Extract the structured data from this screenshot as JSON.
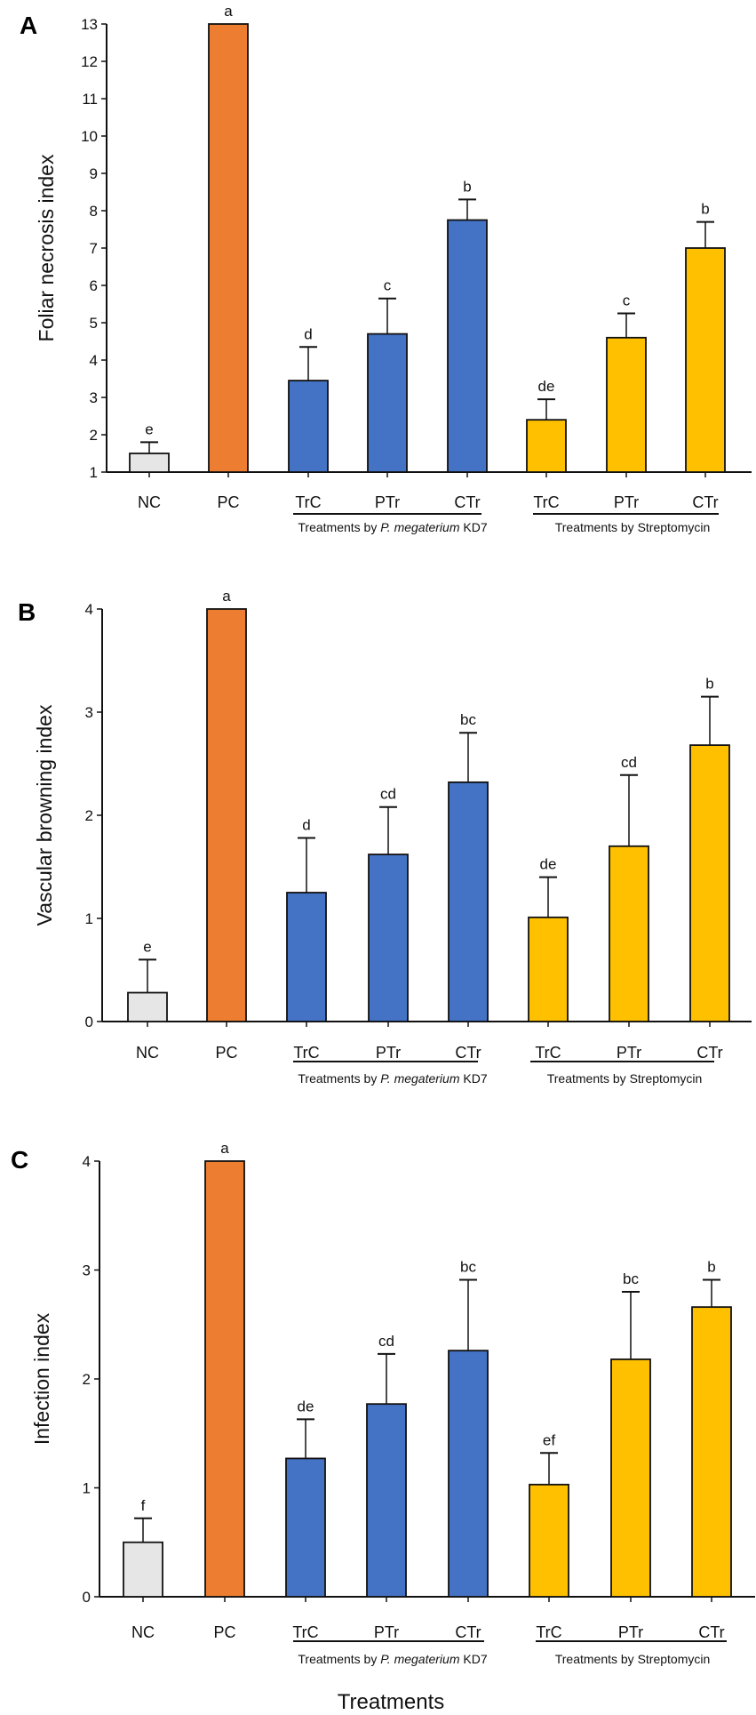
{
  "colors": {
    "NC": "#e6e6e6",
    "PC": "#ed7d31",
    "KD7": "#4472c4",
    "Streptomycin": "#ffc000"
  },
  "chart_data": [
    {
      "type": "bar",
      "panel_label": "A",
      "ylabel": "Foliar necrosis index",
      "ylim": [
        1,
        13
      ],
      "yticks": [
        1,
        2,
        3,
        4,
        5,
        6,
        7,
        8,
        9,
        10,
        11,
        12,
        13
      ],
      "categories": [
        "NC",
        "PC",
        "TrC",
        "PTr",
        "CTr",
        "TrC",
        "PTr",
        "CTr"
      ],
      "groups": [
        "none",
        "none",
        "KD7",
        "KD7",
        "KD7",
        "Streptomycin",
        "Streptomycin",
        "Streptomycin"
      ],
      "values": [
        1.5,
        13,
        3.45,
        4.7,
        7.75,
        2.4,
        4.6,
        7.0
      ],
      "error_upper": [
        1.8,
        13,
        4.35,
        5.65,
        8.3,
        2.95,
        5.25,
        7.7
      ],
      "letters": [
        "e",
        "a",
        "d",
        "c",
        "b",
        "de",
        "c",
        "b"
      ],
      "group_labels": {
        "kd7_prefix": "Treatments by ",
        "kd7_italic": "P. megaterium",
        "kd7_suffix": " KD7",
        "strep": "Treatments by Streptomycin"
      }
    },
    {
      "type": "bar",
      "panel_label": "B",
      "ylabel": "Vascular browning index",
      "ylim": [
        0,
        4
      ],
      "yticks": [
        0,
        1,
        2,
        3,
        4
      ],
      "categories": [
        "NC",
        "PC",
        "TrC",
        "PTr",
        "CTr",
        "TrC",
        "PTr",
        "CTr"
      ],
      "groups": [
        "none",
        "none",
        "KD7",
        "KD7",
        "KD7",
        "Streptomycin",
        "Streptomycin",
        "Streptomycin"
      ],
      "values": [
        0.28,
        4,
        1.25,
        1.62,
        2.32,
        1.01,
        1.7,
        2.68
      ],
      "error_upper": [
        0.6,
        4,
        1.78,
        2.08,
        2.8,
        1.4,
        2.39,
        3.15
      ],
      "letters": [
        "e",
        "a",
        "d",
        "cd",
        "bc",
        "de",
        "cd",
        "b"
      ],
      "group_labels": {
        "kd7_prefix": "Treatments by ",
        "kd7_italic": "P. megaterium",
        "kd7_suffix": " KD7",
        "strep": "Treatments by Streptomycin"
      }
    },
    {
      "type": "bar",
      "panel_label": "C",
      "ylabel": "Infection index",
      "xlabel": "Treatments",
      "ylim": [
        0,
        4
      ],
      "yticks": [
        0,
        1,
        2,
        3,
        4
      ],
      "categories": [
        "NC",
        "PC",
        "TrC",
        "PTr",
        "CTr",
        "TrC",
        "PTr",
        "CTr"
      ],
      "groups": [
        "none",
        "none",
        "KD7",
        "KD7",
        "KD7",
        "Streptomycin",
        "Streptomycin",
        "Streptomycin"
      ],
      "values": [
        0.5,
        4,
        1.27,
        1.77,
        2.26,
        1.03,
        2.18,
        2.66
      ],
      "error_upper": [
        0.72,
        4,
        1.63,
        2.23,
        2.91,
        1.32,
        2.8,
        2.91
      ],
      "letters": [
        "f",
        "a",
        "de",
        "cd",
        "bc",
        "ef",
        "bc",
        "b"
      ],
      "group_labels": {
        "kd7_prefix": "Treatments by ",
        "kd7_italic": "P. megaterium",
        "kd7_suffix": " KD7",
        "strep": "Treatments by Streptomycin"
      }
    }
  ]
}
